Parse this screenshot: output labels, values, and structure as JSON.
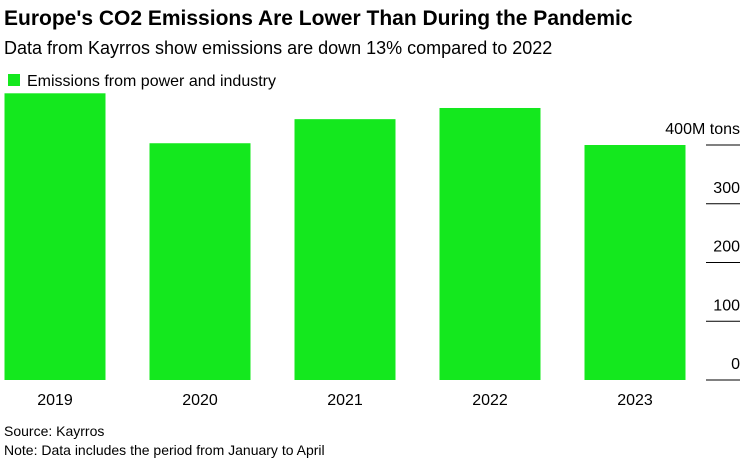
{
  "chart_data": {
    "type": "bar",
    "title": "Europe's CO2 Emissions Are Lower Than During the Pandemic",
    "subtitle": "Data from Kayrros show emissions are down 13% compared to 2022",
    "categories": [
      "2019",
      "2020",
      "2021",
      "2022",
      "2023"
    ],
    "series": [
      {
        "name": "Emissions from power and industry",
        "color": "#14e81e",
        "values": [
          488,
          403,
          444,
          463,
          400
        ]
      }
    ],
    "ylim": [
      0,
      500
    ],
    "yticks": [
      0,
      100,
      200,
      300,
      {
        "value": 400,
        "label": "400M tons"
      }
    ],
    "legend": "top-left",
    "source": "Source: Kayrros",
    "note": "Note: Data includes the period from January to April"
  }
}
